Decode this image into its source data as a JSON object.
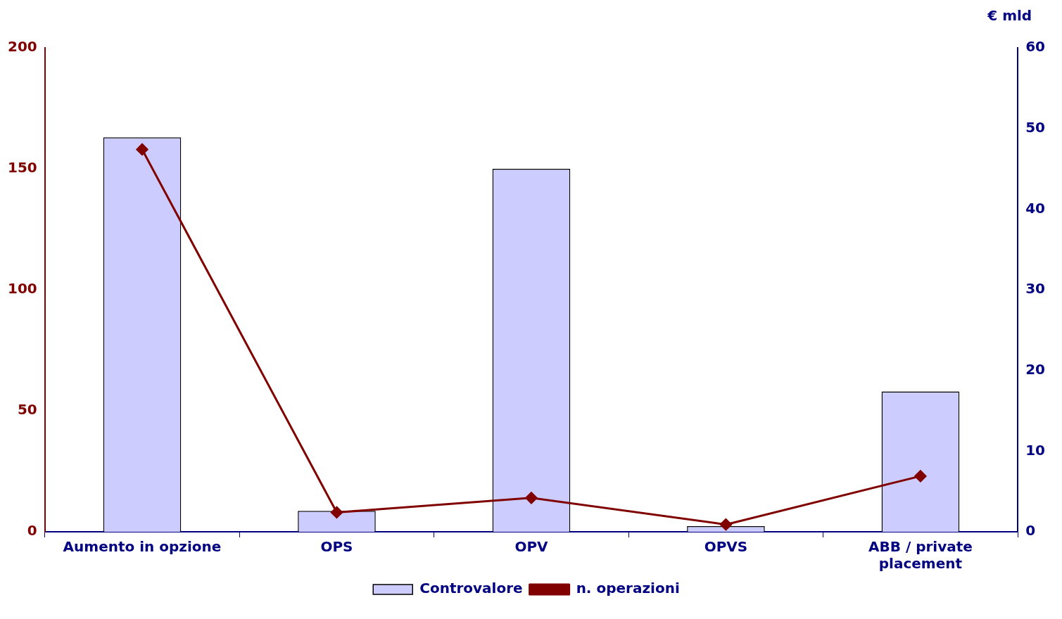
{
  "chart_data": {
    "type": "bar",
    "categories": [
      "Aumento in opzione",
      "OPS",
      "OPV",
      "OPVS",
      "ABB / private placement"
    ],
    "series": [
      {
        "name": "Controvalore",
        "axis": "y2",
        "color": "#ccccff",
        "values": [
          48.9,
          2.6,
          45.0,
          0.7,
          17.4
        ]
      },
      {
        "name": "n. operazioni",
        "type": "line",
        "axis": "y",
        "color": "#800000",
        "marker": "diamond",
        "values": [
          158,
          8,
          14,
          3,
          23
        ]
      }
    ],
    "ylim": [
      0,
      200
    ],
    "yticks": [
      0,
      50,
      100,
      150,
      200
    ],
    "y2lim": [
      0,
      60
    ],
    "y2ticks": [
      0,
      10,
      20,
      30,
      40,
      50,
      60
    ],
    "y2label": "€ mld",
    "legend": "bottom"
  }
}
